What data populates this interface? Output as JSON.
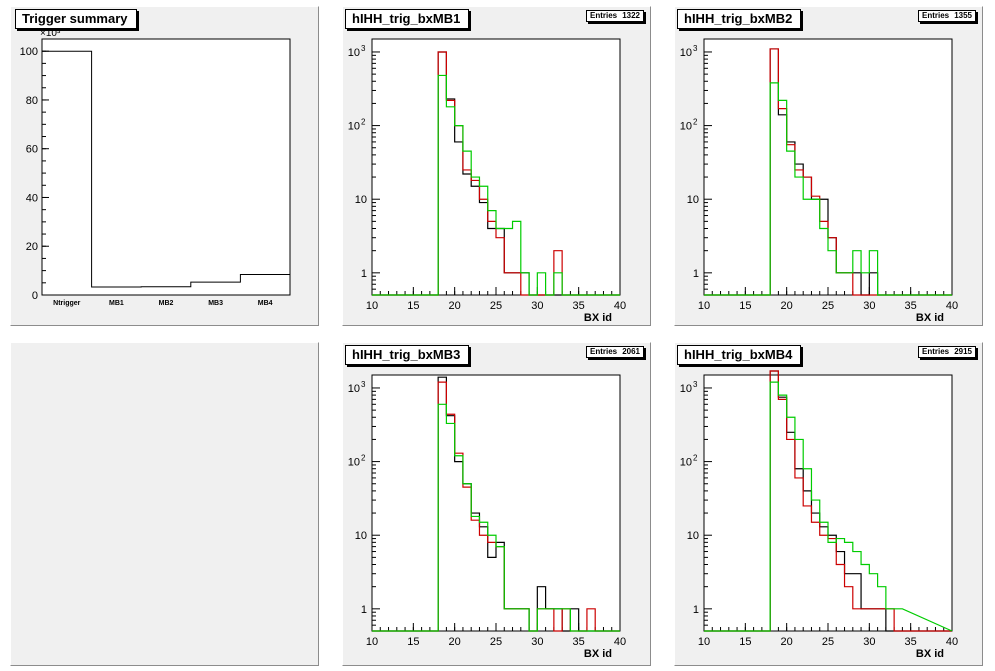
{
  "colors": {
    "pad_bg": "#f0f0f0",
    "frame": "#000000",
    "series_black": "#000000",
    "series_red": "#cc0000",
    "series_green": "#00cc00"
  },
  "summary": {
    "title": "Trigger summary",
    "exponent_label": "×10³",
    "chart_data": {
      "type": "bar",
      "categories": [
        "Ntrigger",
        "MB1",
        "MB2",
        "MB3",
        "MB4"
      ],
      "values": [
        100,
        3.3,
        3.4,
        5.3,
        8.4
      ],
      "value_multiplier": 1000,
      "yticks": [
        "0",
        "20",
        "40",
        "60",
        "80",
        "100"
      ],
      "ylim": [
        0,
        105
      ]
    }
  },
  "histograms": [
    {
      "title": "hIHH_trig_bxMB1",
      "entries_label": "Entries",
      "entries_value": "1322",
      "xlabel": "BX id",
      "chart_data": {
        "type": "line",
        "step": true,
        "log_y": true,
        "xlim": [
          10,
          40
        ],
        "ylim": [
          0.5,
          1500
        ],
        "xticks": [
          "10",
          "15",
          "20",
          "25",
          "30",
          "35",
          "40"
        ],
        "yticks": [
          "1",
          "10",
          "10²",
          "10³"
        ],
        "bins": [
          18,
          19,
          20,
          21,
          22,
          23,
          24,
          25,
          26,
          27,
          28,
          29,
          30,
          31,
          32,
          33
        ],
        "series": [
          {
            "color": "black",
            "values": [
              1000,
              230,
              60,
              22,
              15,
              9,
              4,
              4,
              1,
              1,
              1,
              0,
              0,
              0,
              0,
              0
            ]
          },
          {
            "color": "red",
            "values": [
              1000,
              220,
              100,
              25,
              18,
              10,
              5,
              3,
              1,
              1,
              0,
              0,
              0,
              0,
              2,
              0
            ]
          },
          {
            "color": "green",
            "values": [
              480,
              180,
              100,
              45,
              20,
              15,
              7,
              4,
              4,
              5,
              1,
              0,
              1,
              0,
              1,
              0
            ]
          }
        ]
      }
    },
    {
      "title": "hIHH_trig_bxMB2",
      "entries_label": "Entries",
      "entries_value": "1355",
      "xlabel": "BX id",
      "chart_data": {
        "type": "line",
        "step": true,
        "log_y": true,
        "xlim": [
          10,
          40
        ],
        "ylim": [
          0.5,
          1500
        ],
        "xticks": [
          "10",
          "15",
          "20",
          "25",
          "30",
          "35",
          "40"
        ],
        "yticks": [
          "1",
          "10",
          "10²",
          "10³"
        ],
        "bins": [
          18,
          19,
          20,
          21,
          22,
          23,
          24,
          25,
          26,
          27,
          28,
          29,
          30,
          31
        ],
        "series": [
          {
            "color": "black",
            "values": [
              1100,
              140,
              60,
              30,
              20,
              10,
              10,
              3,
              1,
              1,
              1,
              0,
              1,
              0
            ]
          },
          {
            "color": "red",
            "values": [
              1100,
              170,
              55,
              25,
              20,
              11,
              5,
              3,
              1,
              1,
              0,
              0,
              0,
              0
            ]
          },
          {
            "color": "green",
            "values": [
              380,
              220,
              45,
              20,
              10,
              10,
              4,
              2,
              1,
              1,
              2,
              1,
              2,
              0
            ]
          }
        ]
      }
    },
    {
      "title": "hIHH_trig_bxMB3",
      "entries_label": "Entries",
      "entries_value": "2061",
      "xlabel": "BX id",
      "chart_data": {
        "type": "line",
        "step": true,
        "log_y": true,
        "xlim": [
          10,
          40
        ],
        "ylim": [
          0.5,
          1500
        ],
        "xticks": [
          "10",
          "15",
          "20",
          "25",
          "30",
          "35",
          "40"
        ],
        "yticks": [
          "1",
          "10",
          "10²",
          "10³"
        ],
        "bins": [
          18,
          19,
          20,
          21,
          22,
          23,
          24,
          25,
          26,
          27,
          28,
          29,
          30,
          31,
          32,
          33,
          34,
          35,
          36,
          37
        ],
        "series": [
          {
            "color": "black",
            "values": [
              1400,
              420,
              100,
              50,
              20,
              13,
              5,
              8,
              1,
              1,
              1,
              0,
              2,
              1,
              1,
              0,
              1,
              0,
              0,
              0
            ]
          },
          {
            "color": "red",
            "values": [
              1200,
              440,
              130,
              45,
              16,
              10,
              8,
              7,
              1,
              1,
              1,
              0,
              1,
              1,
              0,
              1,
              0,
              0,
              1,
              0
            ]
          },
          {
            "color": "green",
            "values": [
              600,
              330,
              120,
              50,
              18,
              15,
              10,
              7,
              1,
              1,
              1,
              0,
              1,
              1,
              1,
              1,
              0,
              0,
              0,
              0
            ]
          }
        ]
      }
    },
    {
      "title": "hIHH_trig_bxMB4",
      "entries_label": "Entries",
      "entries_value": "2915",
      "xlabel": "BX id",
      "chart_data": {
        "type": "line",
        "step": true,
        "log_y": true,
        "xlim": [
          10,
          40
        ],
        "ylim": [
          0.5,
          1500
        ],
        "xticks": [
          "10",
          "15",
          "20",
          "25",
          "30",
          "35",
          "40"
        ],
        "yticks": [
          "1",
          "10",
          "10²",
          "10³"
        ],
        "bins": [
          18,
          19,
          20,
          21,
          22,
          23,
          24,
          25,
          26,
          27,
          28,
          29,
          30,
          31,
          32,
          33
        ],
        "series": [
          {
            "color": "black",
            "values": [
              1700,
              750,
              250,
              80,
              40,
              20,
              13,
              10,
              6,
              3,
              3,
              1,
              1,
              1,
              0,
              0
            ]
          },
          {
            "color": "red",
            "values": [
              1700,
              700,
              200,
              60,
              25,
              15,
              10,
              9,
              4,
              2,
              1,
              1,
              1,
              1,
              1,
              0
            ]
          },
          {
            "color": "green",
            "values": [
              1200,
              800,
              400,
              200,
              80,
              30,
              15,
              8,
              9,
              8,
              6,
              4,
              3,
              2,
              1,
              1
            ]
          }
        ]
      }
    }
  ]
}
